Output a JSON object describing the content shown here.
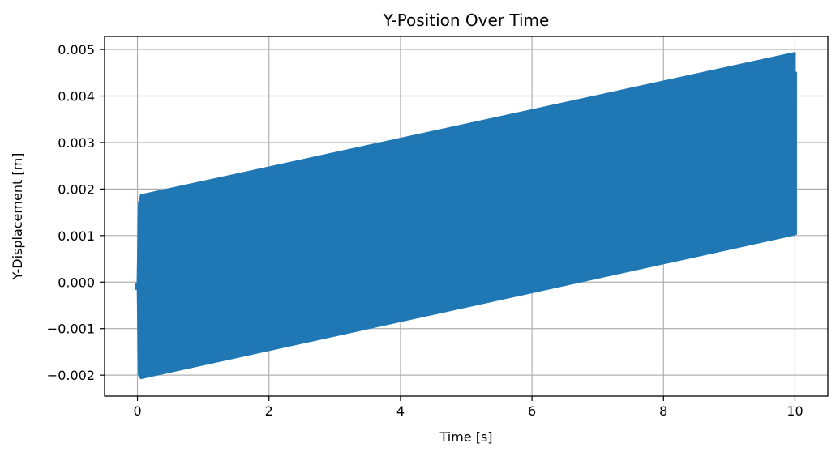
{
  "chart_data": {
    "type": "line",
    "title": "Y-Position Over Time",
    "xlabel": "Time [s]",
    "ylabel": "Y-Displacement [m]",
    "xlim": [
      -0.5,
      10.5
    ],
    "ylim": [
      -0.00245,
      0.00528
    ],
    "x_ticks": [
      0,
      2,
      4,
      6,
      8,
      10
    ],
    "x_tick_labels": [
      "0",
      "2",
      "4",
      "6",
      "8",
      "10"
    ],
    "y_ticks": [
      -0.002,
      -0.001,
      0.0,
      0.001,
      0.002,
      0.003,
      0.004,
      0.005
    ],
    "y_tick_labels": [
      "−0.002",
      "−0.001",
      "0.000",
      "0.001",
      "0.002",
      "0.003",
      "0.004",
      "0.005"
    ],
    "grid": true,
    "series": [
      {
        "color": "#1f77b4",
        "render": "dense-oscillation-envelope",
        "envelope": {
          "x": [
            0.0,
            0.02,
            0.05,
            10.0
          ],
          "upper": [
            0.0,
            0.0017,
            0.00187,
            0.00493
          ],
          "lower": [
            0.0,
            -0.002,
            -0.00207,
            0.00102
          ]
        },
        "end_spike": {
          "x": 10.0,
          "from": 0.00102,
          "to": 0.00452
        },
        "start_point": {
          "x": 0.0,
          "y": -0.0001
        }
      }
    ]
  }
}
